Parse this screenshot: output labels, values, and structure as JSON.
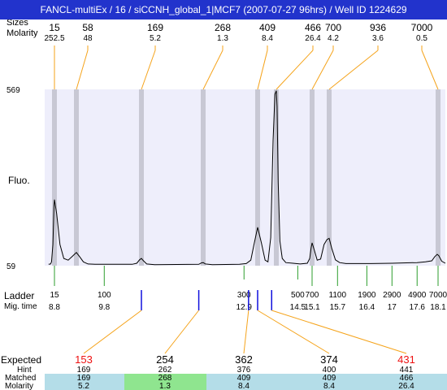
{
  "window": {
    "title": "FANCL-multiEx / 16 / siCCNH_global_1|MCF7 (2007-07-27 96hrs) / Well ID 1224629"
  },
  "row_labels": {
    "sizes": "Sizes",
    "molarity": "Molarity",
    "ladder": "Ladder",
    "mig_time": "Mig. time",
    "expected": "Expected",
    "hint": "Hint",
    "matched": "Matched",
    "molarity_bottom": "Molarity"
  },
  "colors": {
    "title_bg": "#2233cc",
    "plot_bg": "#eeeefb",
    "peak_band": "#c8c8d4",
    "orange_lines": "#f5a31a",
    "green_lines": "#2e9e2e",
    "blue_lines": "#1010dd",
    "red_expected": "#ee1111",
    "table_cyan": "#b4dde8",
    "table_green": "#8fe58f"
  },
  "chart_data": {
    "type": "line",
    "ylabel": "Fluo.",
    "ylim": [
      59,
      569
    ],
    "y_ticks": [
      "569",
      "59"
    ],
    "peaks": [
      {
        "size": "15",
        "molarity": "252.5",
        "mig_time": 8.8
      },
      {
        "size": "58",
        "molarity": "48",
        "mig_time": 9.2
      },
      {
        "size": "169",
        "molarity": "5.2",
        "mig_time": 10.6
      },
      {
        "size": "268",
        "molarity": "1.3",
        "mig_time": 12.0
      },
      {
        "size": "409",
        "molarity": "8.4",
        "mig_time": 13.2
      },
      {
        "size": "466",
        "molarity": "26.4",
        "mig_time": 13.6
      },
      {
        "size": "700",
        "molarity": "4.2",
        "mig_time": 15.1
      },
      {
        "size": "936",
        "molarity": "3.6",
        "mig_time": 15.5
      },
      {
        "size": "7000",
        "molarity": "0.5",
        "mig_time": 18.1
      }
    ],
    "trace": [
      [
        8.5,
        63
      ],
      [
        8.6,
        64
      ],
      [
        8.65,
        70
      ],
      [
        8.72,
        120
      ],
      [
        8.78,
        235
      ],
      [
        8.8,
        250
      ],
      [
        8.84,
        210
      ],
      [
        8.9,
        120
      ],
      [
        8.97,
        80
      ],
      [
        9.05,
        75
      ],
      [
        9.12,
        85
      ],
      [
        9.2,
        97
      ],
      [
        9.27,
        85
      ],
      [
        9.35,
        70
      ],
      [
        9.45,
        64
      ],
      [
        9.6,
        63
      ],
      [
        10.4,
        63
      ],
      [
        10.5,
        66
      ],
      [
        10.56,
        76
      ],
      [
        10.6,
        80
      ],
      [
        10.64,
        74
      ],
      [
        10.72,
        64
      ],
      [
        10.9,
        62
      ],
      [
        11.9,
        63
      ],
      [
        11.96,
        67
      ],
      [
        12.0,
        68
      ],
      [
        12.05,
        64
      ],
      [
        12.2,
        62
      ],
      [
        12.8,
        63
      ],
      [
        12.95,
        65
      ],
      [
        13.05,
        75
      ],
      [
        13.12,
        120
      ],
      [
        13.2,
        170
      ],
      [
        13.28,
        125
      ],
      [
        13.36,
        75
      ],
      [
        13.42,
        70
      ],
      [
        13.48,
        140
      ],
      [
        13.53,
        420
      ],
      [
        13.57,
        555
      ],
      [
        13.6,
        565
      ],
      [
        13.63,
        520
      ],
      [
        13.68,
        300
      ],
      [
        13.75,
        130
      ],
      [
        13.85,
        80
      ],
      [
        14.0,
        68
      ],
      [
        14.3,
        66
      ],
      [
        14.6,
        64
      ],
      [
        14.9,
        66
      ],
      [
        15.0,
        80
      ],
      [
        15.06,
        110
      ],
      [
        15.1,
        125
      ],
      [
        15.15,
        105
      ],
      [
        15.22,
        75
      ],
      [
        15.3,
        78
      ],
      [
        15.38,
        120
      ],
      [
        15.45,
        135
      ],
      [
        15.5,
        138
      ],
      [
        15.56,
        110
      ],
      [
        15.65,
        76
      ],
      [
        15.75,
        68
      ],
      [
        15.9,
        65
      ],
      [
        16.5,
        65
      ],
      [
        17.0,
        66
      ],
      [
        17.6,
        68
      ],
      [
        17.8,
        70
      ],
      [
        17.95,
        73
      ],
      [
        18.02,
        85
      ],
      [
        18.08,
        92
      ],
      [
        18.12,
        88
      ],
      [
        18.2,
        72
      ],
      [
        18.3,
        66
      ]
    ],
    "ladder": [
      {
        "size": "15",
        "mig_time": "8.8",
        "t": 8.8,
        "color": "green",
        "row": "upper"
      },
      {
        "size": "100",
        "mig_time": "9.8",
        "t": 9.8,
        "color": "green",
        "row": "upper"
      },
      {
        "size": "300",
        "mig_time": "12.9",
        "t": 12.9,
        "color": "green",
        "row": "lower"
      },
      {
        "size": "500",
        "mig_time": "14.5",
        "t": 14.5,
        "color": "green",
        "row": "lower"
      },
      {
        "size": "700",
        "mig_time": "15.1",
        "t": 15.1,
        "color": "green",
        "row": "upper"
      },
      {
        "size": "1100",
        "mig_time": "15.7",
        "t": 15.7,
        "color": "green",
        "row": "upper"
      },
      {
        "size": "1900",
        "mig_time": "16.4",
        "t": 16.4,
        "color": "green",
        "row": "upper"
      },
      {
        "size": "2900",
        "mig_time": "17",
        "t": 17.0,
        "color": "green",
        "row": "upper"
      },
      {
        "size": "4900",
        "mig_time": "17.6",
        "t": 17.6,
        "color": "green",
        "row": "upper"
      },
      {
        "size": "7000",
        "mig_time": "18.1",
        "t": 18.1,
        "color": "green",
        "row": "upper"
      }
    ],
    "blue_markers": [
      10.6,
      11.9,
      13.0,
      13.2,
      13.5
    ],
    "expected_table": [
      {
        "expected": "153",
        "hint": "169",
        "matched": "169",
        "molarity": "5.2",
        "expected_color": "red",
        "cell": "cyan",
        "marker_t": 10.6
      },
      {
        "expected": "254",
        "hint": "262",
        "matched": "268",
        "molarity": "1.3",
        "expected_color": "black",
        "cell": "green",
        "marker_t": 11.9
      },
      {
        "expected": "362",
        "hint": "376",
        "matched": "409",
        "molarity": "8.4",
        "expected_color": "black",
        "cell": "cyan",
        "marker_t": 13.0
      },
      {
        "expected": "374",
        "hint": "400",
        "matched": "409",
        "molarity": "8.4",
        "expected_color": "black",
        "cell": "cyan",
        "marker_t": 13.2
      },
      {
        "expected": "431",
        "hint": "441",
        "matched": "466",
        "molarity": "26.4",
        "expected_color": "red",
        "cell": "cyan",
        "marker_t": 13.5
      }
    ]
  }
}
